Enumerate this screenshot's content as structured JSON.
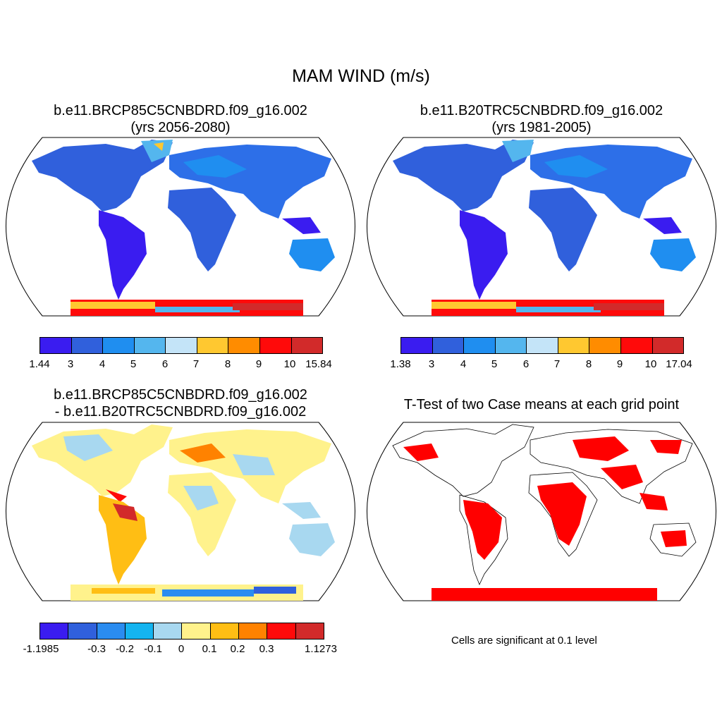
{
  "figure": {
    "title": "MAM WIND (m/s)",
    "note": "Cells are significant at 0.1 level"
  },
  "panels": {
    "top_left": {
      "title_line1": "b.e11.BRCP85C5CNBDRD.f09_g16.002",
      "title_line2": "(yrs 2056-2080)",
      "colorbar": {
        "labels": [
          "1.44",
          "3",
          "4",
          "5",
          "6",
          "7",
          "8",
          "9",
          "10",
          "15.84"
        ],
        "colors": [
          "#3a1cf0",
          "#3060dc",
          "#1f8ef0",
          "#54b6ee",
          "#c4e4f8",
          "#ffc830",
          "#ff8c00",
          "#ff0a0a",
          "#d22a2a"
        ]
      }
    },
    "top_right": {
      "title_line1": "b.e11.B20TRC5CNBDRD.f09_g16.002",
      "title_line2": "(yrs 1981-2005)",
      "colorbar": {
        "labels": [
          "1.38",
          "3",
          "4",
          "5",
          "6",
          "7",
          "8",
          "9",
          "10",
          "17.04"
        ],
        "colors": [
          "#3a1cf0",
          "#3060dc",
          "#1f8ef0",
          "#54b6ee",
          "#c4e4f8",
          "#ffc830",
          "#ff8c00",
          "#ff0a0a",
          "#d22a2a"
        ]
      }
    },
    "bottom_left": {
      "title_line1": "b.e11.BRCP85C5CNBDRD.f09_g16.002",
      "title_line2": "- b.e11.B20TRC5CNBDRD.f09_g16.002",
      "colorbar": {
        "labels": [
          "-1.1985",
          "-0.3",
          "-0.2",
          "-0.1",
          "0",
          "0.1",
          "0.2",
          "0.3",
          "1.1273"
        ],
        "colors": [
          "#3a1cf0",
          "#3060dc",
          "#2a8cf0",
          "#14b4f0",
          "#a8d8f0",
          "#fff28c",
          "#ffbe14",
          "#ff8200",
          "#ff0a0a",
          "#d22a2a"
        ]
      }
    },
    "bottom_right": {
      "title_line1": "T-Test of two Case means at each grid point"
    }
  },
  "colors": {
    "land_base": "#2d6fe8",
    "land_dark": "#3a1cf0",
    "diff_base": "#fff28c",
    "signif": "#ff0000"
  }
}
